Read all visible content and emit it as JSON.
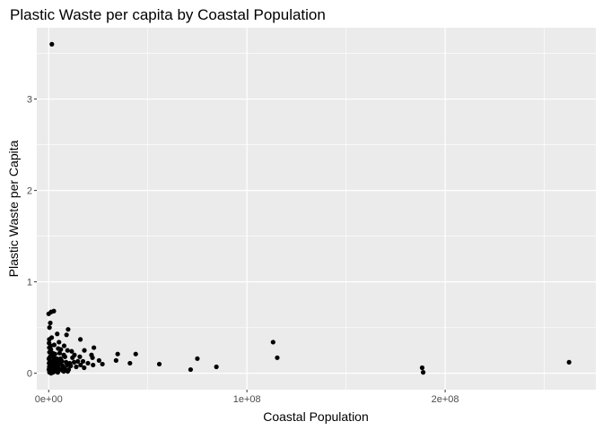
{
  "chart_data": {
    "type": "scatter",
    "title": "Plastic Waste per capita by Coastal Population",
    "xlabel": "Coastal Population",
    "ylabel": "Plastic Waste per Capita",
    "xlim": [
      -6000000,
      276000000
    ],
    "ylim": [
      -0.18,
      3.78
    ],
    "x_ticks": [
      0,
      100000000,
      200000000
    ],
    "x_tick_labels": [
      "0e+00",
      "1e+08",
      "2e+08"
    ],
    "y_ticks": [
      0,
      1,
      2,
      3
    ],
    "y_tick_labels": [
      "0",
      "1",
      "2",
      "3"
    ],
    "grid": true,
    "legend": "none",
    "colors": {
      "panel_bg": "#ebebeb",
      "grid": "#ffffff",
      "points": "#000000",
      "tick": "#333333"
    },
    "points": [
      [
        1600000,
        3.6
      ],
      [
        0,
        0.65
      ],
      [
        1200000,
        0.67
      ],
      [
        2600000,
        0.68
      ],
      [
        800000,
        0.55
      ],
      [
        400000,
        0.5
      ],
      [
        9800000,
        0.48
      ],
      [
        9000000,
        0.42
      ],
      [
        4300000,
        0.43
      ],
      [
        1500000,
        0.39
      ],
      [
        300000,
        0.37
      ],
      [
        200000,
        0.33
      ],
      [
        2800000,
        0.31
      ],
      [
        5200000,
        0.34
      ],
      [
        1000000,
        0.3
      ],
      [
        7800000,
        0.3
      ],
      [
        16000000,
        0.37
      ],
      [
        300000,
        0.28
      ],
      [
        1100000,
        0.26
      ],
      [
        4800000,
        0.27
      ],
      [
        6100000,
        0.26
      ],
      [
        9500000,
        0.25
      ],
      [
        11600000,
        0.24
      ],
      [
        22800000,
        0.28
      ],
      [
        18000000,
        0.25
      ],
      [
        400000,
        0.23
      ],
      [
        2100000,
        0.22
      ],
      [
        3200000,
        0.21
      ],
      [
        5500000,
        0.22
      ],
      [
        7600000,
        0.2
      ],
      [
        13000000,
        0.2
      ],
      [
        21600000,
        0.2
      ],
      [
        34800000,
        0.21
      ],
      [
        43900000,
        0.21
      ],
      [
        22100000,
        0.17
      ],
      [
        15700000,
        0.18
      ],
      [
        12000000,
        0.17
      ],
      [
        8200000,
        0.18
      ],
      [
        6000000,
        0.16
      ],
      [
        4100000,
        0.16
      ],
      [
        2700000,
        0.17
      ],
      [
        1600000,
        0.19
      ],
      [
        700000,
        0.18
      ],
      [
        100000,
        0.16
      ],
      [
        500000,
        0.14
      ],
      [
        1400000,
        0.13
      ],
      [
        2300000,
        0.14
      ],
      [
        3600000,
        0.13
      ],
      [
        5000000,
        0.12
      ],
      [
        6700000,
        0.13
      ],
      [
        8800000,
        0.12
      ],
      [
        10600000,
        0.11
      ],
      [
        12800000,
        0.12
      ],
      [
        14700000,
        0.13
      ],
      [
        17300000,
        0.13
      ],
      [
        19800000,
        0.11
      ],
      [
        25400000,
        0.14
      ],
      [
        27100000,
        0.1
      ],
      [
        34000000,
        0.14
      ],
      [
        41000000,
        0.11
      ],
      [
        55800000,
        0.1
      ],
      [
        71600000,
        0.04
      ],
      [
        75000000,
        0.16
      ],
      [
        84600000,
        0.07
      ],
      [
        113200000,
        0.34
      ],
      [
        115300000,
        0.17
      ],
      [
        188400000,
        0.06
      ],
      [
        188900000,
        0.01
      ],
      [
        262500000,
        0.12
      ],
      [
        200000,
        0.11
      ],
      [
        900000,
        0.1
      ],
      [
        1800000,
        0.09
      ],
      [
        2600000,
        0.1
      ],
      [
        3400000,
        0.08
      ],
      [
        4400000,
        0.09
      ],
      [
        5800000,
        0.1
      ],
      [
        7100000,
        0.08
      ],
      [
        9400000,
        0.09
      ],
      [
        11100000,
        0.08
      ],
      [
        13900000,
        0.07
      ],
      [
        17900000,
        0.06
      ],
      [
        22400000,
        0.09
      ],
      [
        16100000,
        0.09
      ],
      [
        300000,
        0.07
      ],
      [
        1000000,
        0.06
      ],
      [
        2000000,
        0.05
      ],
      [
        3100000,
        0.04
      ],
      [
        4000000,
        0.06
      ],
      [
        5300000,
        0.05
      ],
      [
        6400000,
        0.04
      ],
      [
        8200000,
        0.05
      ],
      [
        10100000,
        0.04
      ],
      [
        100000,
        0.04
      ],
      [
        700000,
        0.03
      ],
      [
        1500000,
        0.02
      ],
      [
        2400000,
        0.03
      ],
      [
        3700000,
        0.02
      ],
      [
        6900000,
        0.03
      ],
      [
        9600000,
        0.02
      ],
      [
        400000,
        0.01
      ],
      [
        1200000,
        0.0
      ],
      [
        2200000,
        0.01
      ],
      [
        4600000,
        0.01
      ],
      [
        7600000,
        0.02
      ]
    ]
  }
}
